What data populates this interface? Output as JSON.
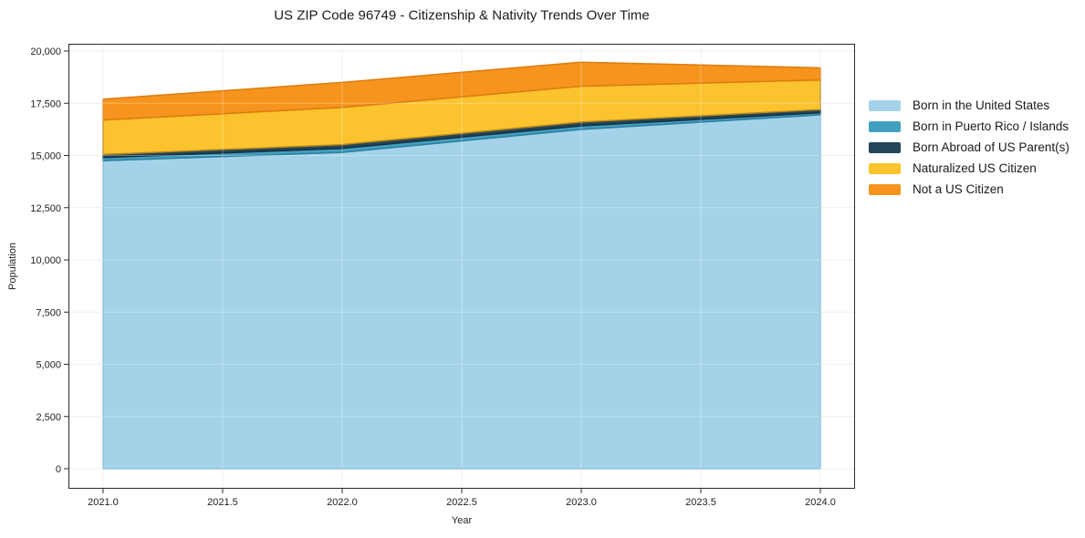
{
  "title": "US ZIP Code 96749 - Citizenship & Nativity Trends Over Time",
  "chart_data": {
    "type": "area",
    "stacked": true,
    "title": "US ZIP Code 96749 - Citizenship & Nativity Trends Over Time",
    "xlabel": "Year",
    "ylabel": "Population",
    "x": [
      2021.0,
      2022.0,
      2023.0,
      2024.0
    ],
    "series": [
      {
        "name": "Born in the United States",
        "values": [
          14750,
          15150,
          16250,
          16950
        ],
        "color": "#A4D3E9",
        "edge_color": "#7AB5D3"
      },
      {
        "name": "Born in Puerto Rico / Islands",
        "values": [
          150,
          190,
          170,
          100
        ],
        "color": "#41A0C2",
        "edge_color": "#2D7E9D"
      },
      {
        "name": "Born Abroad of US Parent(s)",
        "values": [
          150,
          180,
          180,
          145
        ],
        "color": "#234659",
        "edge_color": "#16303F"
      },
      {
        "name": "Naturalized US Citizen",
        "values": [
          1650,
          1780,
          1720,
          1420
        ],
        "color": "#FBC32D",
        "edge_color": "#B8881B"
      },
      {
        "name": "Not a US Citizen",
        "values": [
          1000,
          1200,
          1150,
          580
        ],
        "color": "#F7941E",
        "edge_color": "#DD7C10"
      }
    ],
    "totals": [
      17700,
      18500,
      19470,
      19195
    ],
    "xlim": [
      2020.855,
      2024.145
    ],
    "ylim": [
      -960,
      20350
    ],
    "xticks": {
      "values": [
        2021.0,
        2021.5,
        2022.0,
        2022.5,
        2023.0,
        2023.5,
        2024.0
      ],
      "labels": [
        "2021.0",
        "2021.5",
        "2022.0",
        "2022.5",
        "2023.0",
        "2023.5",
        "2024.0"
      ]
    },
    "yticks": {
      "values": [
        0,
        2500,
        5000,
        7500,
        10000,
        12500,
        15000,
        17500,
        20000
      ],
      "labels": [
        "0",
        "2,500",
        "5,000",
        "7,500",
        "10,000",
        "12,500",
        "15,000",
        "17,500",
        "20,000"
      ]
    },
    "grid": true,
    "legend_position": "right of plot, no border"
  },
  "colors": {
    "background": "#ffffff",
    "grid": "#e8e8e8",
    "grid_overlay": "#ffffff",
    "spine": "#2b2b2b",
    "text": "#222222"
  }
}
